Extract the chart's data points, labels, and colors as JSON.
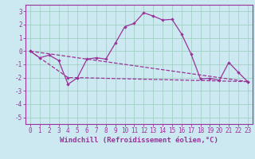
{
  "title": "",
  "xlabel": "Windchill (Refroidissement éolien,°C)",
  "bg_color": "#cce8f0",
  "grid_color": "#99ccbb",
  "line_color": "#993399",
  "xlim": [
    -0.5,
    23.5
  ],
  "ylim": [
    -5.5,
    3.5
  ],
  "yticks": [
    -5,
    -4,
    -3,
    -2,
    -1,
    0,
    1,
    2,
    3
  ],
  "xticks": [
    0,
    1,
    2,
    3,
    4,
    5,
    6,
    7,
    8,
    9,
    10,
    11,
    12,
    13,
    14,
    15,
    16,
    17,
    18,
    19,
    20,
    21,
    22,
    23
  ],
  "series1_x": [
    0,
    1,
    2,
    3,
    4,
    5,
    6,
    7,
    8,
    9,
    10,
    11,
    12,
    13,
    14,
    15,
    16,
    17,
    18,
    19,
    20,
    21,
    22,
    23
  ],
  "series1_y": [
    0.0,
    -0.5,
    -0.3,
    -0.7,
    -2.5,
    -2.0,
    -0.6,
    -0.5,
    -0.6,
    0.6,
    1.85,
    2.1,
    2.9,
    2.65,
    2.35,
    2.4,
    1.3,
    -0.2,
    -2.1,
    -2.05,
    -2.2,
    -0.85,
    -1.6,
    -2.3
  ],
  "series2_x": [
    0,
    4,
    5,
    23
  ],
  "series2_y": [
    0.0,
    -2.0,
    -2.0,
    -2.3
  ],
  "series3_x": [
    0,
    23
  ],
  "series3_y": [
    0.0,
    -2.3
  ],
  "tick_fontsize": 5.5,
  "xlabel_fontsize": 6.5,
  "lw": 0.9,
  "marker_size": 2.2
}
